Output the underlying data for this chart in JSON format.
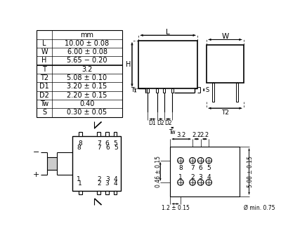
{
  "table_rows": [
    [
      "L",
      "10.00 ± 0.08"
    ],
    [
      "W",
      "6.00 ± 0.08"
    ],
    [
      "H",
      "5.65 − 0.20"
    ],
    [
      "T",
      "3.2"
    ],
    [
      "T2",
      "5.08 ± 0.10"
    ],
    [
      "D1",
      "3.20 ± 0.15"
    ],
    [
      "D2",
      "2.20 ± 0.15"
    ],
    [
      "Tw",
      "0.40"
    ],
    [
      "S",
      "0.30 ± 0.05"
    ]
  ],
  "lc": "#000000",
  "bg": "#ffffff",
  "gray": "#999999"
}
